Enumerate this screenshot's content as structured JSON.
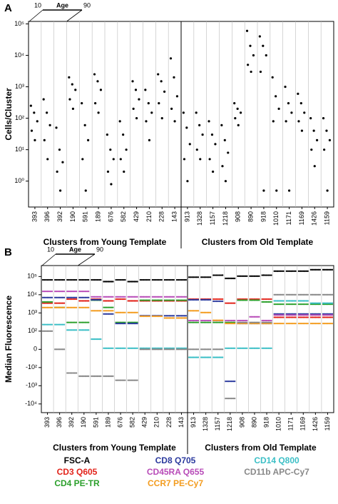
{
  "chart_data": [
    {
      "type": "strip",
      "panel": "A",
      "ylabel": "Cells/Cluster",
      "age_label": "Age",
      "age_from": "10",
      "age_to": "90",
      "group_labels": [
        "Clusters from Young Template",
        "Clusters from Old Template"
      ],
      "categories": [
        "393",
        "396",
        "392",
        "190",
        "591",
        "189",
        "676",
        "582",
        "429",
        "210",
        "228",
        "143",
        "913",
        "1328",
        "1157",
        "1218",
        "908",
        "890",
        "918",
        "1010",
        "1171",
        "1169",
        "1426",
        "1159"
      ],
      "values": [
        [
          250,
          150,
          80,
          40,
          20
        ],
        [
          400,
          150,
          60,
          20,
          5
        ],
        [
          50,
          10,
          4,
          2,
          0.5
        ],
        [
          2000,
          1200,
          800,
          400,
          200
        ],
        [
          300,
          60,
          20,
          5,
          0.5
        ],
        [
          2500,
          1500,
          800,
          300,
          150
        ],
        [
          30,
          10,
          5,
          2,
          0.8
        ],
        [
          80,
          30,
          10,
          5,
          2
        ],
        [
          1500,
          800,
          400,
          200,
          100
        ],
        [
          800,
          300,
          150,
          80,
          20
        ],
        [
          2500,
          1500,
          700,
          300,
          100
        ],
        [
          8000,
          2000,
          500,
          200,
          80
        ],
        [
          150,
          50,
          15,
          5,
          1
        ],
        [
          150,
          60,
          30,
          10,
          5
        ],
        [
          80,
          30,
          15,
          5,
          2
        ],
        [
          60,
          20,
          8,
          3,
          1
        ],
        [
          300,
          200,
          150,
          100,
          60
        ],
        [
          60000,
          20000,
          10000,
          5000,
          3000
        ],
        [
          40000,
          20000,
          10000,
          3000,
          0.5
        ],
        [
          2000,
          500,
          200,
          80,
          0.5
        ],
        [
          1000,
          300,
          150,
          80,
          0.5
        ],
        [
          600,
          300,
          150,
          80,
          40
        ],
        [
          100,
          40,
          20,
          10,
          3
        ],
        [
          100,
          40,
          20,
          10,
          0.5
        ]
      ],
      "color": "#000000",
      "log": true,
      "ylim": [
        0.15,
        120000
      ],
      "yticks": [
        {
          "value": 100000,
          "label": "10⁵"
        },
        {
          "value": 10000,
          "label": "10⁴"
        },
        {
          "value": 1000,
          "label": "10³"
        },
        {
          "value": 100,
          "label": "10²"
        },
        {
          "value": 10,
          "label": "10¹"
        },
        {
          "value": 1,
          "label": "10⁰"
        }
      ]
    },
    {
      "type": "multistrip",
      "panel": "B",
      "ylabel": "Median Fluorescence",
      "age_label": "Age",
      "age_from": "10",
      "age_to": "90",
      "group_labels": [
        "Clusters from Young Template",
        "Clusters from Old Template"
      ],
      "categories": [
        "393",
        "396",
        "392",
        "190",
        "591",
        "189",
        "676",
        "582",
        "429",
        "210",
        "228",
        "143",
        "913",
        "1328",
        "1157",
        "1218",
        "908",
        "890",
        "918",
        "1010",
        "1171",
        "1169",
        "1426",
        "1159"
      ],
      "scale": "symlog",
      "linthresh": 100,
      "ylim": [
        -30000,
        400000
      ],
      "yticks": [
        {
          "value": 100000,
          "label": "10⁵"
        },
        {
          "value": 10000,
          "label": "10⁴"
        },
        {
          "value": 1000,
          "label": "10³"
        },
        {
          "value": 100,
          "label": "10²"
        },
        0,
        {
          "value": -100,
          "label": "-10²"
        },
        {
          "value": -1000,
          "label": "-10³"
        },
        {
          "value": -10000,
          "label": "-10⁴"
        }
      ],
      "series": [
        {
          "name": "FSC-A",
          "color": "#000000",
          "values": [
            50000,
            50000,
            50000,
            50000,
            50000,
            40000,
            50000,
            40000,
            50000,
            50000,
            50000,
            50000,
            70000,
            70000,
            90000,
            60000,
            80000,
            80000,
            90000,
            150000,
            150000,
            150000,
            180000,
            180000
          ]
        },
        {
          "name": "CD3 Q605",
          "color": "#e2231a",
          "values": [
            3000,
            3000,
            5000,
            4000,
            5000,
            4000,
            5000,
            4000,
            4000,
            4000,
            4000,
            4000,
            5000,
            5000,
            5000,
            3000,
            5000,
            5000,
            5000,
            500,
            500,
            500,
            500,
            500
          ]
        },
        {
          "name": "CD4 PE-TR",
          "color": "#2ca02c",
          "values": [
            4000,
            2000,
            300,
            300,
            5000,
            2000,
            300,
            300,
            5000,
            5000,
            5000,
            5000,
            300,
            300,
            300,
            300,
            5000,
            5000,
            4000,
            3000,
            3000,
            3000,
            3000,
            3000
          ]
        },
        {
          "name": "CD8 Q705",
          "color": "#2b3a9e",
          "values": [
            8000,
            8000,
            8000,
            8000,
            6000,
            1000,
            300,
            300,
            800,
            800,
            800,
            800,
            6000,
            6000,
            5000,
            -500,
            300,
            300,
            300,
            1000,
            1000,
            1000,
            1000,
            1000
          ]
        },
        {
          "name": "CD45RA Q655",
          "color": "#b84cb8",
          "values": [
            20000,
            20000,
            20000,
            20000,
            10000,
            10000,
            10000,
            10000,
            10000,
            10000,
            10000,
            10000,
            500,
            500,
            500,
            500,
            500,
            800,
            500,
            1000,
            1000,
            1000,
            1000,
            1000
          ]
        },
        {
          "name": "CCR7 PE-Cy7",
          "color": "#f39c1f",
          "values": [
            1500,
            1500,
            1500,
            1500,
            1000,
            1000,
            800,
            800,
            500,
            500,
            400,
            400,
            1000,
            800,
            300,
            200,
            200,
            200,
            200,
            200,
            200,
            200,
            200,
            200
          ]
        },
        {
          "name": "CD14 Q800",
          "color": "#3cbfc6",
          "values": [
            200,
            200,
            100,
            100,
            50,
            0,
            0,
            0,
            0,
            0,
            0,
            0,
            -50,
            -50,
            -50,
            0,
            0,
            0,
            0,
            4000,
            4000,
            4000,
            3000,
            3000
          ]
        },
        {
          "name": "CD11b APC-Cy7",
          "color": "#888888",
          "values": [
            100,
            0,
            -200,
            -300,
            -300,
            -300,
            -500,
            -500,
            0,
            0,
            0,
            0,
            0,
            0,
            0,
            -5000,
            300,
            300,
            300,
            10000,
            10000,
            10000,
            10000,
            10000
          ]
        }
      ]
    }
  ]
}
